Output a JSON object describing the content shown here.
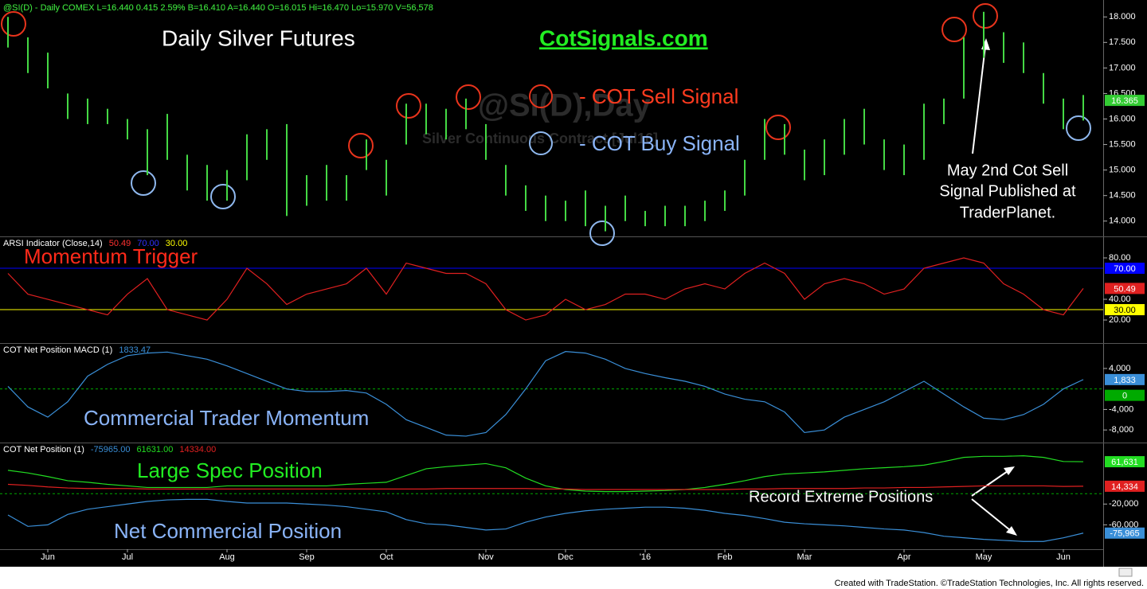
{
  "footer": "Created with TradeStation. ©TradeStation Technologies, Inc. All rights reserved.",
  "chart_data": [
    {
      "type": "ohlc",
      "header": "@SI(D) - Daily COMEX L=16.440 0.415 2.59% B=16.410 A=16.440 O=16.015 Hi=16.470 Lo=15.970 V=56,578",
      "title": "Daily Silver Futures",
      "subtitle": "CotSignals.com",
      "watermark": [
        "@SI(D),Day",
        "Silver Continuous Contract [Jul16]"
      ],
      "legend": {
        "sell": "- COT Sell Signal",
        "buy": "- COT Buy Signal"
      },
      "annotation": [
        "May 2nd Cot Sell",
        "Signal Published at",
        "TraderPlanet."
      ],
      "categories": [
        null,
        null,
        "Jun",
        null,
        null,
        null,
        "Jul",
        null,
        null,
        null,
        null,
        "Aug",
        null,
        null,
        null,
        "Sep",
        null,
        null,
        null,
        "Oct",
        null,
        null,
        null,
        null,
        "Nov",
        null,
        null,
        null,
        "Dec",
        null,
        null,
        null,
        "'16",
        null,
        null,
        null,
        "Feb",
        null,
        null,
        null,
        "Mar",
        null,
        null,
        null,
        null,
        "Apr",
        null,
        null,
        null,
        "May",
        null,
        null,
        null,
        "Jun",
        null
      ],
      "color": "#44d944",
      "high": [
        18.0,
        17.6,
        17.3,
        16.5,
        16.4,
        16.2,
        16.0,
        15.8,
        16.1,
        15.3,
        15.1,
        15.0,
        15.7,
        15.8,
        15.9,
        14.9,
        15.1,
        14.9,
        15.6,
        15.2,
        16.3,
        16.3,
        16.2,
        16.4,
        15.9,
        15.1,
        14.7,
        14.5,
        14.4,
        14.6,
        14.3,
        14.5,
        14.2,
        14.3,
        14.3,
        14.4,
        14.6,
        15.2,
        16.0,
        15.9,
        15.4,
        15.6,
        16.0,
        16.2,
        15.6,
        15.5,
        16.3,
        16.4,
        17.6,
        18.1,
        17.7,
        17.5,
        16.9,
        16.4,
        16.47
      ],
      "low": [
        17.4,
        16.9,
        16.6,
        16.0,
        15.9,
        15.9,
        15.6,
        14.9,
        15.2,
        14.6,
        14.4,
        14.4,
        14.8,
        15.2,
        14.1,
        14.3,
        14.4,
        14.4,
        15.0,
        14.5,
        15.5,
        15.7,
        15.6,
        15.8,
        15.2,
        14.5,
        14.2,
        14.0,
        14.0,
        13.9,
        13.8,
        14.0,
        13.9,
        13.9,
        13.9,
        14.0,
        14.2,
        14.5,
        15.2,
        15.3,
        14.8,
        14.9,
        15.3,
        15.5,
        15.0,
        14.9,
        15.2,
        15.9,
        16.4,
        17.2,
        17.1,
        16.9,
        16.3,
        15.8,
        15.97
      ],
      "last": 16.365,
      "ylim": [
        13.7,
        18.3
      ],
      "yticks": [
        {
          "value": 14,
          "label": "14.000"
        },
        {
          "value": 14.5,
          "label": "14.500"
        },
        {
          "value": 15,
          "label": "15.000"
        },
        {
          "value": 15.5,
          "label": "15.500"
        },
        {
          "value": 16,
          "label": "16.000"
        },
        {
          "value": 16.5,
          "label": "16.500"
        },
        {
          "value": 17,
          "label": "17.000"
        },
        {
          "value": 17.5,
          "label": "17.500"
        },
        {
          "value": 18,
          "label": "18.000"
        }
      ]
    },
    {
      "type": "line",
      "header": "ARSI Indicator (Close,14)",
      "title": "Momentum Trigger",
      "series": [
        {
          "color": "#e02020",
          "values": [
            65,
            45,
            40,
            35,
            30,
            25,
            45,
            60,
            30,
            25,
            20,
            40,
            70,
            55,
            35,
            45,
            50,
            55,
            70,
            45,
            75,
            70,
            65,
            65,
            55,
            30,
            20,
            25,
            40,
            30,
            35,
            45,
            45,
            40,
            50,
            55,
            50,
            65,
            75,
            65,
            40,
            55,
            60,
            55,
            45,
            50,
            70,
            75,
            80,
            75,
            55,
            45,
            30,
            25,
            50.49
          ]
        }
      ],
      "levels": [
        {
          "value": 70,
          "label": "70.00",
          "color": "#0000ff"
        },
        {
          "value": 30,
          "label": "30.00",
          "color": "#ffff00"
        }
      ],
      "ylim": [
        -1.5,
        100
      ],
      "yticks": [
        {
          "value": 20,
          "label": "20.00"
        },
        {
          "value": 40,
          "label": "40.00"
        },
        {
          "value": 80,
          "label": "80.00"
        }
      ]
    },
    {
      "type": "line",
      "header": "COT Net Position MACD (1)",
      "title": "Commercial Trader Momentum",
      "series": [
        {
          "color": "#3a8fd8",
          "end_label": "1,833",
          "values": [
            500,
            -3500,
            -5500,
            -2500,
            2500,
            4800,
            6500,
            7000,
            7200,
            6500,
            5800,
            4500,
            3000,
            1500,
            0,
            -500,
            -500,
            -300,
            -800,
            -3000,
            -6000,
            -7500,
            -9000,
            -9200,
            -8500,
            -5000,
            0,
            5500,
            7300,
            7000,
            5800,
            4000,
            3000,
            2200,
            1500,
            500,
            -1000,
            -2000,
            -2500,
            -4500,
            -8500,
            -8000,
            -5500,
            -4000,
            -2500,
            -500,
            1500,
            -1000,
            -3500,
            -5700,
            -6000,
            -5000,
            -3000,
            0,
            1833.47
          ]
        }
      ],
      "zero_line": {
        "value": 0,
        "label": "0",
        "color": "#00aa00"
      },
      "ylim": [
        -10300,
        8800
      ],
      "yticks": [
        {
          "value": -8000,
          "label": "-8,000"
        },
        {
          "value": -4000,
          "label": "-4,000"
        },
        {
          "value": 4000,
          "label": "4,000"
        }
      ]
    },
    {
      "type": "line",
      "header": "COT Net Position (1)",
      "annotation": "Record Extreme Positions",
      "series": [
        {
          "name": "Net Commercial Position",
          "color": "#3a8fd8",
          "header_label": "-75965.00",
          "end_label": "-75,965",
          "values": [
            -41000,
            -63000,
            -60000,
            -40000,
            -30000,
            -25000,
            -20000,
            -15000,
            -12000,
            -11000,
            -11000,
            -15000,
            -18000,
            -18000,
            -18000,
            -20000,
            -22000,
            -25000,
            -30000,
            -35000,
            -50000,
            -58000,
            -60000,
            -65000,
            -70000,
            -68000,
            -55000,
            -45000,
            -38000,
            -33000,
            -30000,
            -28000,
            -26000,
            -26000,
            -28000,
            -32000,
            -38000,
            -42000,
            -48000,
            -55000,
            -58000,
            -60000,
            -62000,
            -65000,
            -68000,
            -70000,
            -75000,
            -82000,
            -85000,
            -88000,
            -90000,
            -92000,
            -92000,
            -85000,
            -75965
          ]
        },
        {
          "name": "Large Spec Position",
          "color": "#22dd22",
          "header_label": "61631.00",
          "end_label": "61,631",
          "values": [
            45000,
            40000,
            33000,
            25000,
            22000,
            18000,
            15000,
            12000,
            12000,
            12000,
            12000,
            15000,
            15000,
            15000,
            15000,
            15000,
            15000,
            18000,
            20000,
            22000,
            35000,
            48000,
            52000,
            55000,
            58000,
            50000,
            30000,
            15000,
            8000,
            5000,
            4000,
            4000,
            5000,
            6000,
            8000,
            12000,
            18000,
            25000,
            33000,
            38000,
            40000,
            42000,
            45000,
            48000,
            50000,
            52000,
            55000,
            62000,
            70000,
            72000,
            72000,
            73000,
            70000,
            62000,
            61631
          ]
        },
        {
          "color": "#e02020",
          "header_label": "14334.00",
          "end_label": "14,334",
          "values": [
            18000,
            16000,
            13000,
            11000,
            10000,
            10000,
            10000,
            9000,
            9000,
            9000,
            9000,
            9000,
            9000,
            9000,
            9000,
            9000,
            9000,
            9000,
            9000,
            9000,
            9000,
            9000,
            10000,
            10000,
            10000,
            10000,
            10000,
            9000,
            9000,
            8000,
            8000,
            8000,
            8000,
            8000,
            8000,
            8000,
            8000,
            9000,
            9000,
            10000,
            10000,
            10000,
            10000,
            11000,
            11000,
            12000,
            12000,
            13000,
            14000,
            15000,
            15000,
            15000,
            15000,
            14000,
            14334
          ]
        }
      ],
      "zero_line": {
        "value": 0,
        "color": "#00aa00"
      },
      "ylim": [
        -107000,
        97000
      ],
      "yticks": [
        {
          "value": -60000,
          "label": "-60,000"
        },
        {
          "value": -20000,
          "label": "-20,000"
        }
      ]
    }
  ]
}
